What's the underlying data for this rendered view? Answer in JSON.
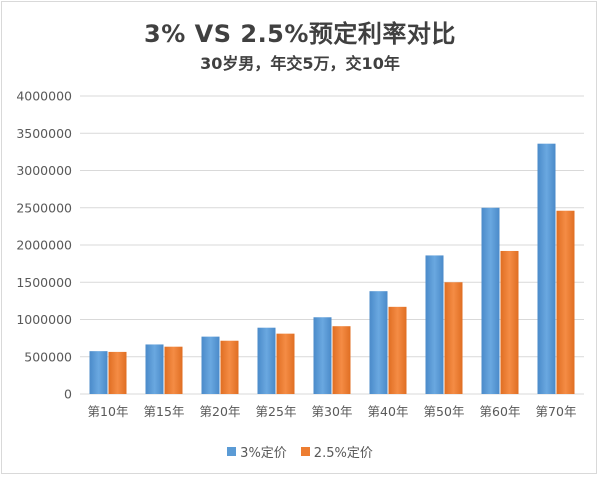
{
  "chart_data": {
    "type": "bar",
    "title": "3% VS 2.5%预定利率对比",
    "subtitle": "30岁男，年交5万，交10年",
    "categories": [
      "第10年",
      "第15年",
      "第20年",
      "第25年",
      "第30年",
      "第40年",
      "第50年",
      "第60年",
      "第70年"
    ],
    "series": [
      {
        "name": "3%定价",
        "color": "#5b9bd5",
        "values": [
          575000,
          665000,
          770000,
          890000,
          1030000,
          1380000,
          1860000,
          2500000,
          3360000
        ]
      },
      {
        "name": "2.5%定价",
        "color": "#ed7d31",
        "values": [
          565000,
          635000,
          715000,
          810000,
          910000,
          1170000,
          1500000,
          1920000,
          2460000
        ]
      }
    ],
    "ylim": [
      0,
      4000000
    ],
    "yticks": [
      0,
      500000,
      1000000,
      1500000,
      2000000,
      2500000,
      3000000,
      3500000,
      4000000
    ],
    "grid": true,
    "legend": "bottom"
  }
}
